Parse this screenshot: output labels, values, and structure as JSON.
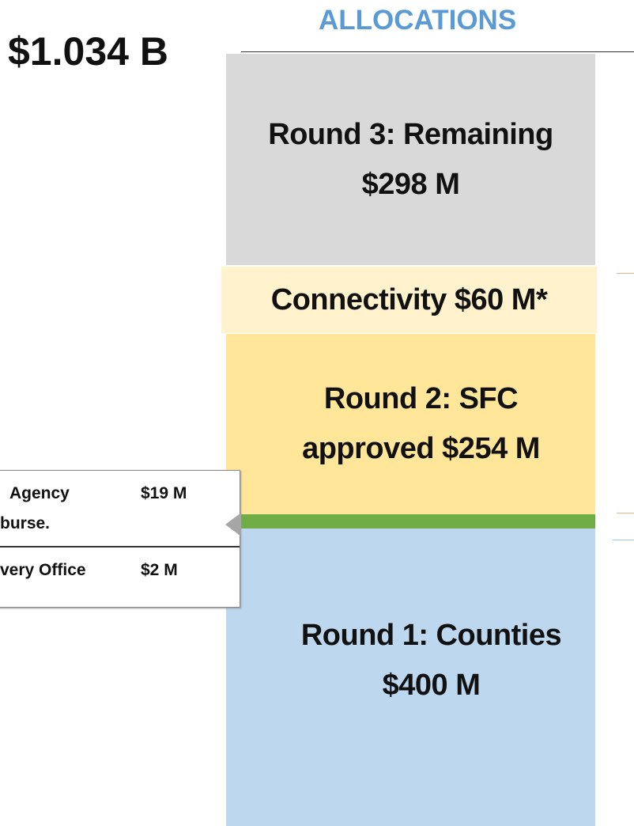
{
  "header": {
    "total": "$1.034 B",
    "title": "ALLOCATIONS"
  },
  "segments": [
    {
      "lines": [
        "Round 3: Remaining",
        "$298 M"
      ]
    },
    {
      "lines": [
        "Connectivity $60 M*"
      ]
    },
    {
      "lines": [
        "Round 2: SFC",
        "approved $254 M"
      ]
    },
    {
      "lines": [
        "Round 1: Counties",
        "$400 M"
      ]
    }
  ],
  "callout": {
    "rows": [
      {
        "label": [
          "Agency",
          "burse."
        ],
        "amount": "$19 M"
      },
      {
        "label": [
          "very Office"
        ],
        "amount": "$2 M"
      }
    ]
  }
}
